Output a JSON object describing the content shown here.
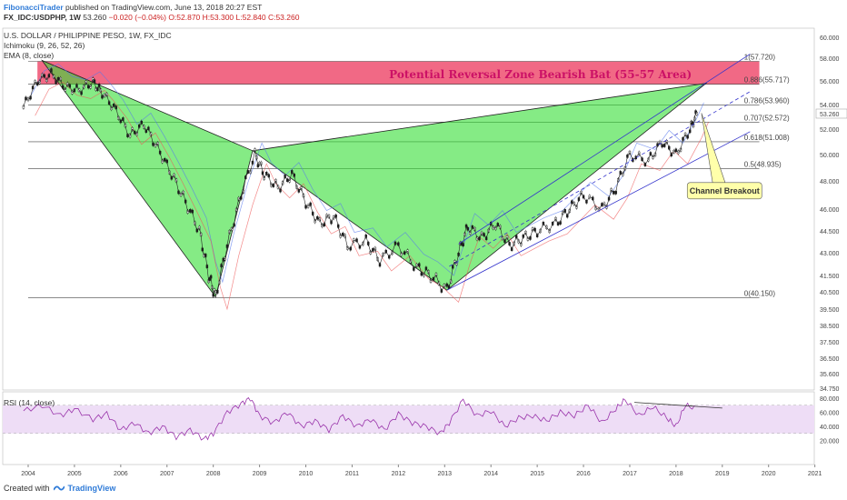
{
  "header": {
    "author": "FibonacciTrader",
    "published": "published on TradingView.com, June 13, 2018 20:27 EST",
    "symbol": "FX_IDC:USDPHP, 1W",
    "last": "53.260",
    "change": "−0.020 (−0.04%)",
    "ohlc": "O:52.870 H:53.300 L:52.840 C:53.260",
    "title": "U.S. DOLLAR / PHILIPPINE PESO, 1W, FX_IDC",
    "ind1": "Ichimoku (9, 26, 52, 26)",
    "ind2": "EMA (8, close)"
  },
  "rsi_label": "RSI (14, close)",
  "footer": {
    "created": "Created with",
    "brand": "TradingView"
  },
  "colors": {
    "pattern": "#33dd33",
    "zone": "#ee4466",
    "channel": "#3333cc",
    "rsi": "#9933aa",
    "rsi_band": "#eeddf6"
  },
  "chart_data": {
    "type": "line",
    "x_ticks": [
      "2004",
      "2005",
      "2006",
      "2007",
      "2008",
      "2009",
      "2010",
      "2011",
      "2012",
      "2013",
      "2014",
      "2015",
      "2016",
      "2017",
      "2018",
      "2019",
      "2020",
      "2021"
    ],
    "y_ticks": [
      "60.000",
      "58.000",
      "56.000",
      "54.000",
      "52.000",
      "50.000",
      "48.000",
      "46.000",
      "44.500",
      "43.000",
      "41.500",
      "40.500",
      "39.500",
      "38.500",
      "37.500",
      "36.500",
      "35.600",
      "34.750"
    ],
    "last_price_label": "53.260",
    "price_path": [
      [
        2003.9,
        53.8
      ],
      [
        2004.2,
        56.0
      ],
      [
        2004.5,
        56.6
      ],
      [
        2004.8,
        55.5
      ],
      [
        2005.1,
        55.2
      ],
      [
        2005.4,
        55.9
      ],
      [
        2005.6,
        55.0
      ],
      [
        2005.9,
        53.5
      ],
      [
        2006.2,
        51.5
      ],
      [
        2006.5,
        52.4
      ],
      [
        2006.8,
        50.5
      ],
      [
        2007.1,
        48.5
      ],
      [
        2007.4,
        46.5
      ],
      [
        2007.7,
        44.5
      ],
      [
        2007.9,
        41.5
      ],
      [
        2008.05,
        40.2
      ],
      [
        2008.3,
        43.5
      ],
      [
        2008.6,
        47.0
      ],
      [
        2008.9,
        50.0
      ],
      [
        2009.1,
        48.5
      ],
      [
        2009.4,
        47.5
      ],
      [
        2009.7,
        48.5
      ],
      [
        2010.0,
        46.5
      ],
      [
        2010.3,
        45.0
      ],
      [
        2010.6,
        45.5
      ],
      [
        2010.9,
        43.5
      ],
      [
        2011.3,
        43.8
      ],
      [
        2011.6,
        42.5
      ],
      [
        2012.0,
        43.5
      ],
      [
        2012.4,
        42.0
      ],
      [
        2012.7,
        41.5
      ],
      [
        2013.05,
        40.6
      ],
      [
        2013.3,
        43.0
      ],
      [
        2013.5,
        44.8
      ],
      [
        2013.8,
        44.0
      ],
      [
        2014.1,
        45.0
      ],
      [
        2014.4,
        43.5
      ],
      [
        2014.7,
        44.0
      ],
      [
        2015.0,
        44.5
      ],
      [
        2015.4,
        45.0
      ],
      [
        2015.7,
        46.0
      ],
      [
        2016.0,
        47.0
      ],
      [
        2016.4,
        46.0
      ],
      [
        2016.7,
        47.5
      ],
      [
        2017.0,
        50.0
      ],
      [
        2017.4,
        49.5
      ],
      [
        2017.7,
        51.0
      ],
      [
        2018.0,
        50.0
      ],
      [
        2018.3,
        52.0
      ],
      [
        2018.45,
        53.26
      ]
    ],
    "harmonic_pattern": {
      "points": [
        [
          2004.3,
          57.8
        ],
        [
          2008.05,
          40.2
        ],
        [
          2008.85,
          50.3
        ],
        [
          2013.05,
          40.6
        ],
        [
          2018.65,
          55.8
        ]
      ],
      "x_point": [
        2004.3,
        57.8
      ]
    },
    "fib_levels": [
      {
        "label": "1(57.720)",
        "value": 57.72
      },
      {
        "label": "0.886(55.717)",
        "value": 55.717
      },
      {
        "label": "0.786(53.960)",
        "value": 53.96
      },
      {
        "label": "0.707(52.572)",
        "value": 52.572
      },
      {
        "label": "0.618(51.008)",
        "value": 51.008
      },
      {
        "label": "0.5(48.935)",
        "value": 48.935
      },
      {
        "label": "0(40.150)",
        "value": 40.15
      }
    ],
    "reversal_zone": {
      "text": "Potential Reversal Zone Bearish Bat (55-57 Area)",
      "from": 55.7,
      "to": 57.72
    },
    "channel": [
      [
        [
          2013.05,
          40.6
        ],
        [
          2019.6,
          51.8
        ]
      ],
      [
        [
          2013.3,
          43.6
        ],
        [
          2019.6,
          58.4
        ]
      ],
      [
        [
          2013.1,
          42.1
        ],
        [
          2019.6,
          55.1
        ]
      ]
    ],
    "annotation": {
      "text": "Channel Breakout"
    },
    "rsi": {
      "ticks": [
        "80.000",
        "60.000",
        "40.000",
        "20.000"
      ],
      "path": [
        [
          2003.9,
          62
        ],
        [
          2004.3,
          70
        ],
        [
          2004.7,
          55
        ],
        [
          2005.0,
          65
        ],
        [
          2005.4,
          50
        ],
        [
          2005.7,
          58
        ],
        [
          2006.0,
          35
        ],
        [
          2006.3,
          45
        ],
        [
          2006.6,
          30
        ],
        [
          2006.9,
          40
        ],
        [
          2007.2,
          25
        ],
        [
          2007.5,
          35
        ],
        [
          2007.8,
          22
        ],
        [
          2008.0,
          30
        ],
        [
          2008.3,
          60
        ],
        [
          2008.6,
          72
        ],
        [
          2008.8,
          80
        ],
        [
          2009.0,
          55
        ],
        [
          2009.3,
          45
        ],
        [
          2009.6,
          60
        ],
        [
          2009.9,
          40
        ],
        [
          2010.2,
          48
        ],
        [
          2010.5,
          35
        ],
        [
          2010.8,
          55
        ],
        [
          2011.1,
          40
        ],
        [
          2011.4,
          50
        ],
        [
          2011.7,
          35
        ],
        [
          2012.0,
          58
        ],
        [
          2012.3,
          45
        ],
        [
          2012.6,
          40
        ],
        [
          2012.9,
          30
        ],
        [
          2013.1,
          45
        ],
        [
          2013.4,
          78
        ],
        [
          2013.7,
          55
        ],
        [
          2014.0,
          62
        ],
        [
          2014.3,
          40
        ],
        [
          2014.6,
          52
        ],
        [
          2014.9,
          55
        ],
        [
          2015.2,
          48
        ],
        [
          2015.5,
          60
        ],
        [
          2015.8,
          55
        ],
        [
          2016.1,
          70
        ],
        [
          2016.4,
          45
        ],
        [
          2016.7,
          65
        ],
        [
          2016.9,
          78
        ],
        [
          2017.2,
          55
        ],
        [
          2017.5,
          68
        ],
        [
          2017.8,
          52
        ],
        [
          2018.0,
          40
        ],
        [
          2018.2,
          70
        ],
        [
          2018.45,
          65
        ]
      ],
      "divergence_line": [
        [
          2017.1,
          74
        ],
        [
          2019.0,
          66
        ]
      ]
    }
  }
}
